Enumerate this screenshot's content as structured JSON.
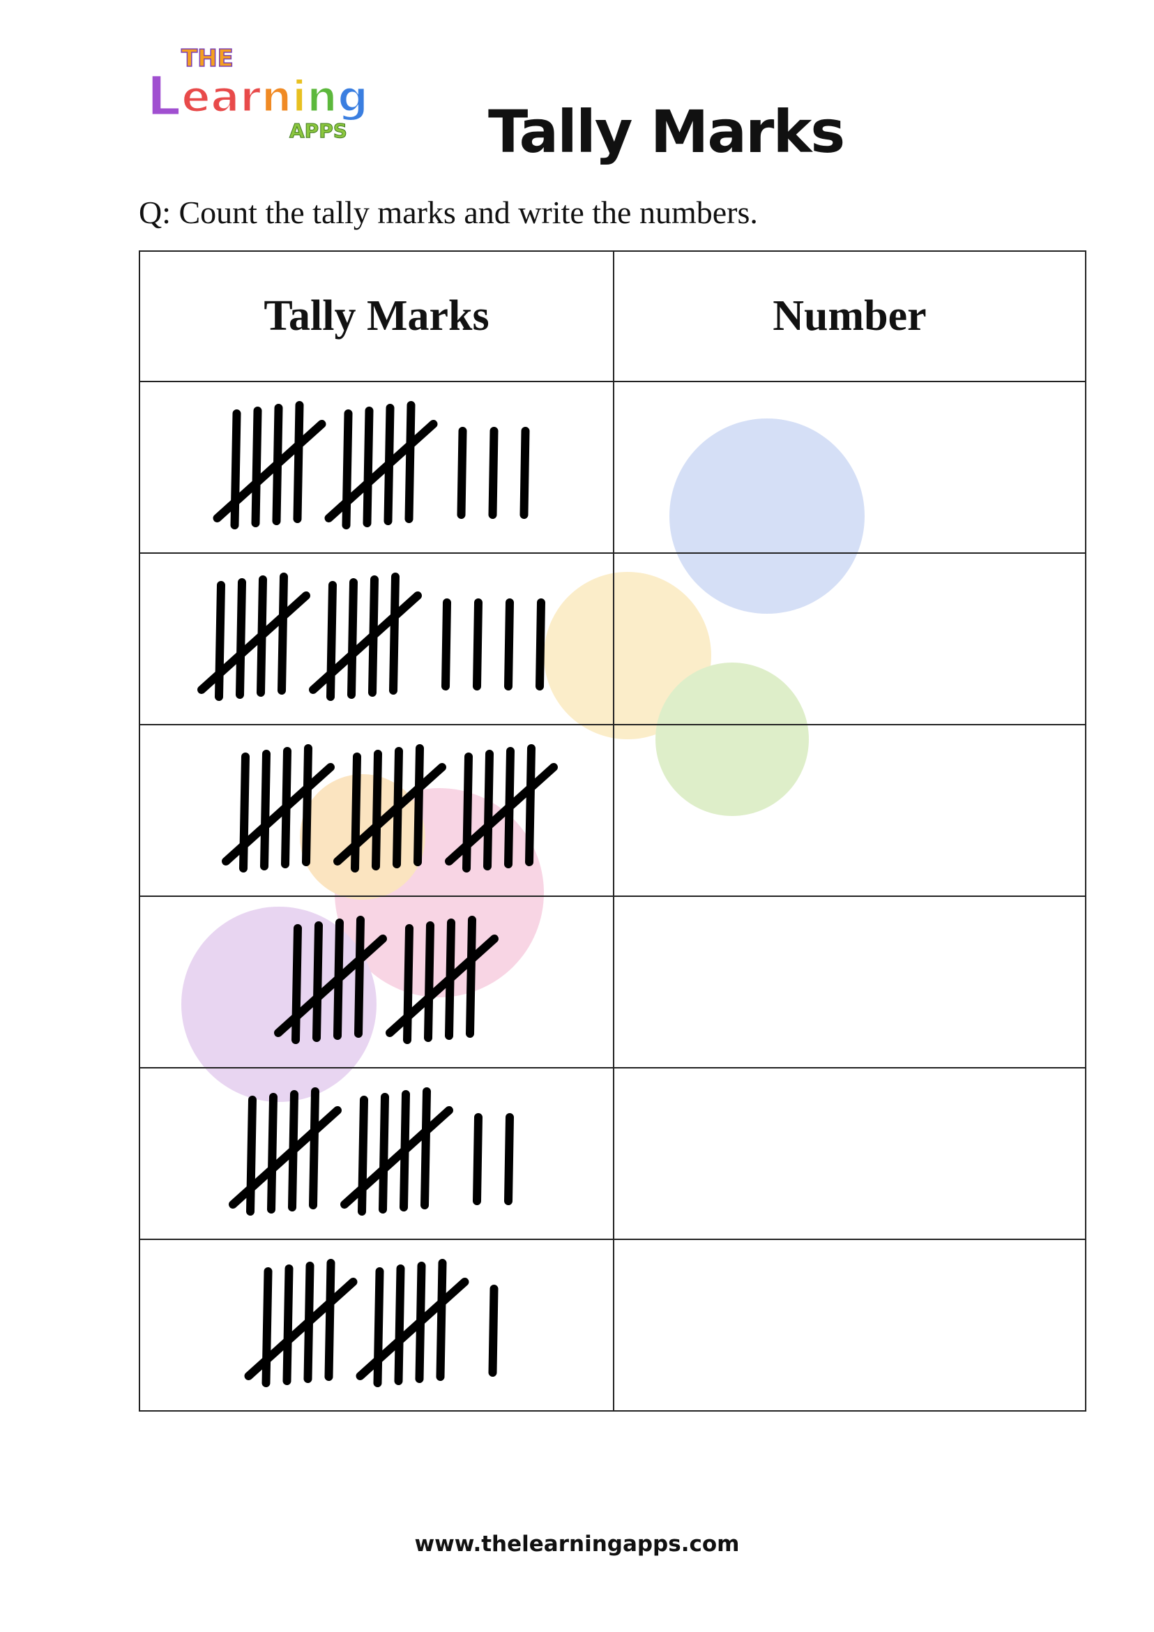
{
  "logo": {
    "text_top": "THE",
    "text_main": "Learning",
    "text_sub": "APPS"
  },
  "title": "Tally Marks",
  "question": "Q: Count the tally marks and write the numbers.",
  "table": {
    "headers": [
      "Tally Marks",
      "Number"
    ],
    "rows": [
      {
        "tally_count": 13,
        "number": ""
      },
      {
        "tally_count": 14,
        "number": ""
      },
      {
        "tally_count": 15,
        "number": ""
      },
      {
        "tally_count": 10,
        "number": ""
      },
      {
        "tally_count": 12,
        "number": ""
      },
      {
        "tally_count": 11,
        "number": ""
      }
    ]
  },
  "footer": "www.thelearningapps.com"
}
